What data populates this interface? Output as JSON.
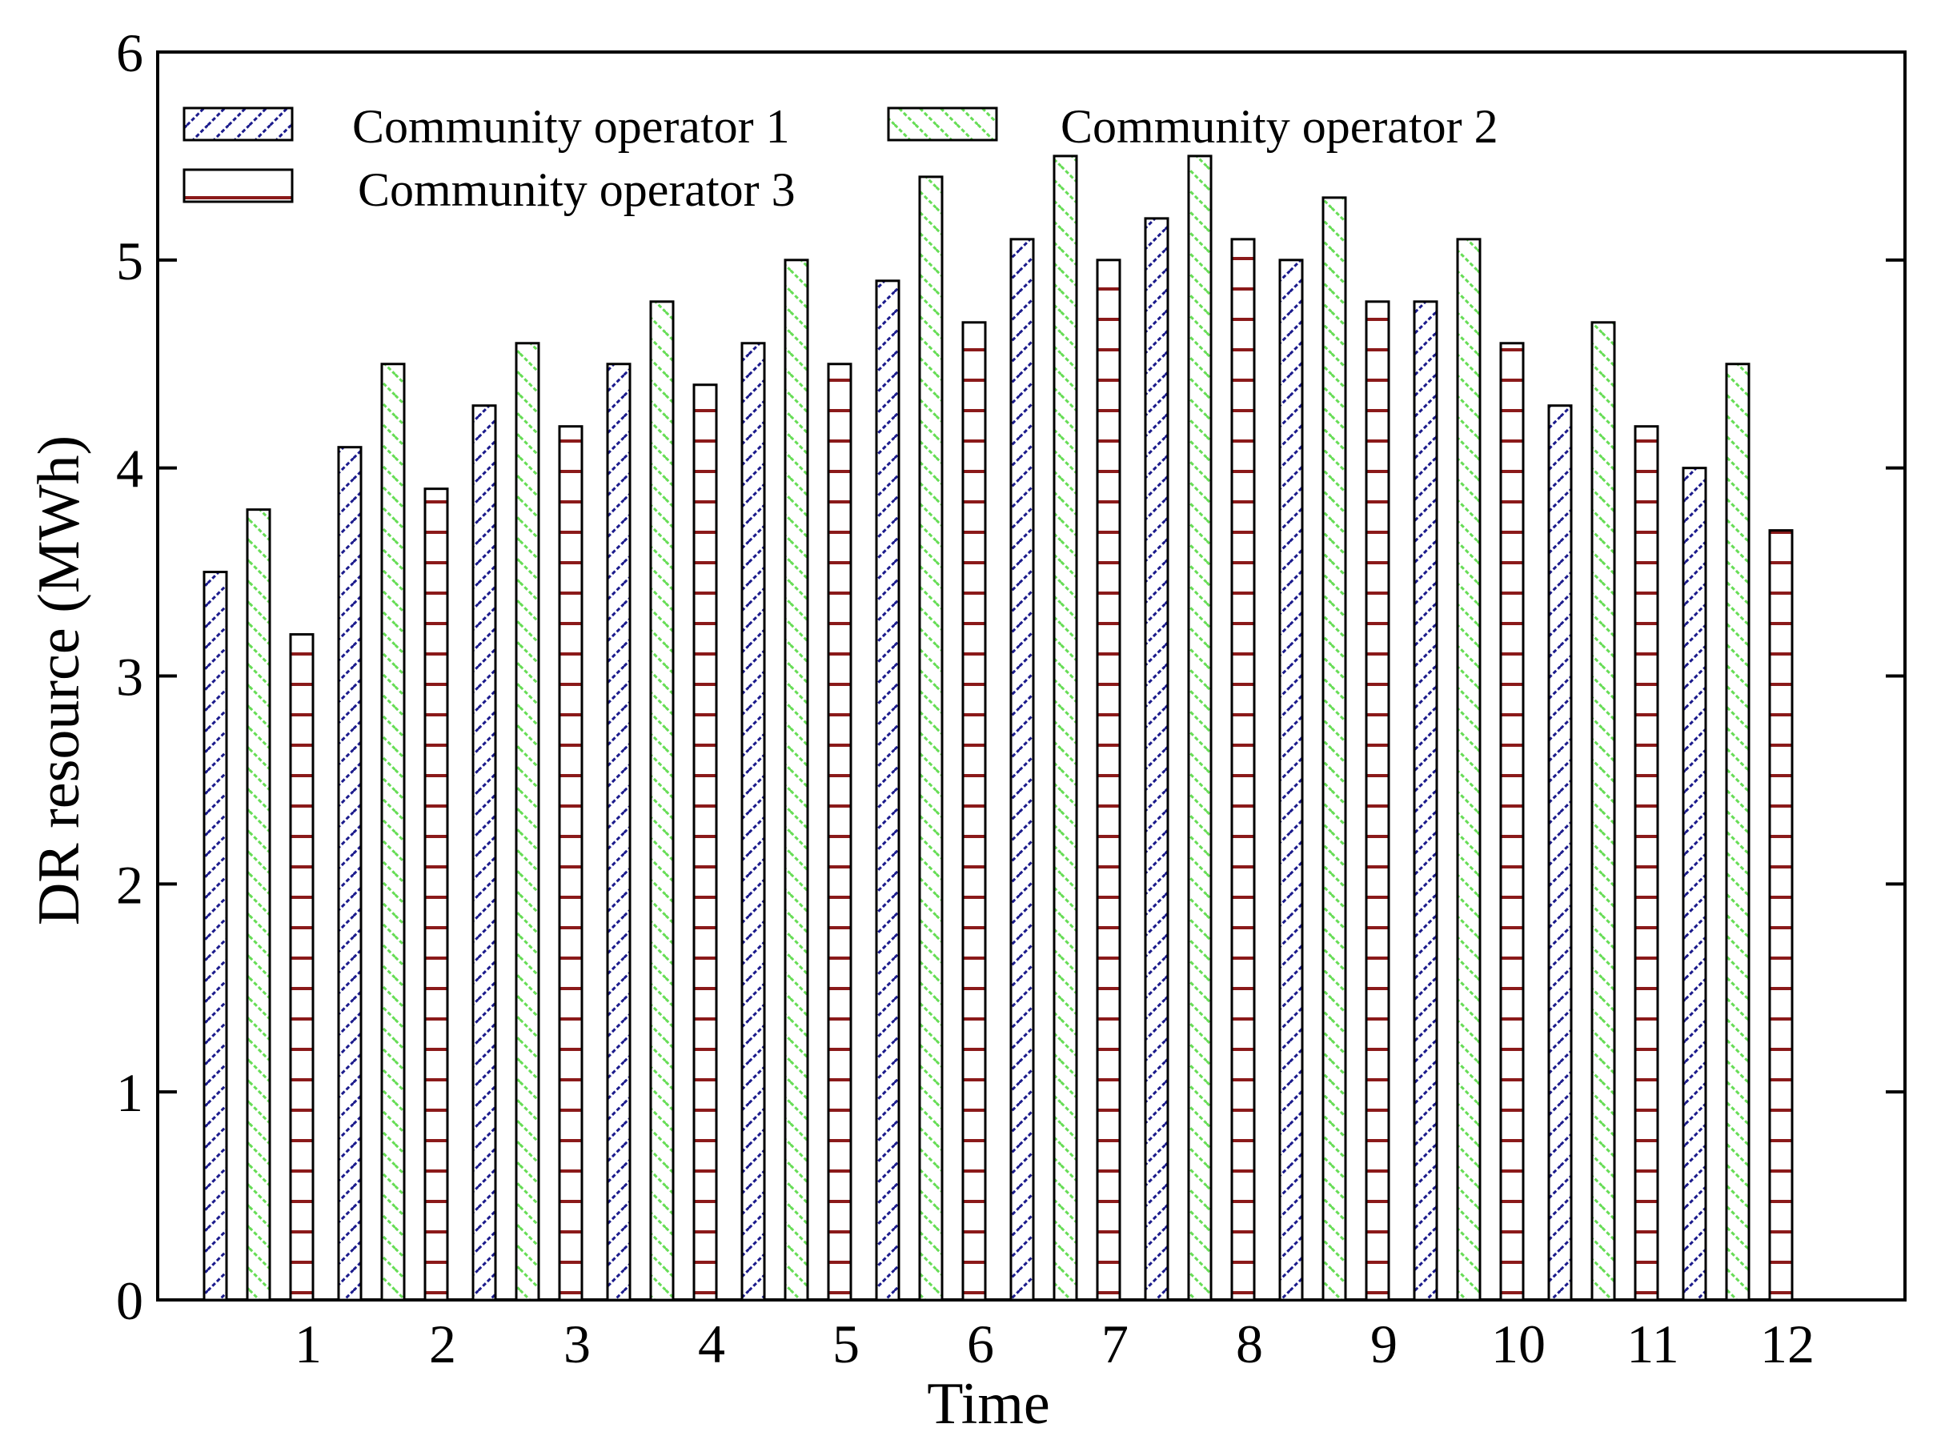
{
  "chart_data": {
    "type": "bar",
    "title": "",
    "xlabel": "Time",
    "ylabel": "DR resource (MWh)",
    "categories": [
      "1",
      "2",
      "3",
      "4",
      "5",
      "6",
      "7",
      "8",
      "9",
      "10",
      "11",
      "12"
    ],
    "ylim": [
      0,
      6
    ],
    "yticks": [
      "0",
      "1",
      "2",
      "3",
      "4",
      "5",
      "6"
    ],
    "grid": false,
    "legend_position": "top-left",
    "series": [
      {
        "name": "Community operator 1",
        "pattern": "diagonal-hatch",
        "color": "#1a1a8c",
        "values": [
          3.5,
          4.1,
          4.3,
          4.5,
          4.6,
          4.9,
          5.1,
          5.2,
          5.0,
          4.8,
          4.3,
          4.0
        ]
      },
      {
        "name": "Community operator 2",
        "pattern": "diagonal-hatch",
        "color": "#66dd55",
        "values": [
          3.8,
          4.5,
          4.6,
          4.8,
          5.0,
          5.4,
          5.5,
          5.5,
          5.3,
          5.1,
          4.7,
          4.5
        ]
      },
      {
        "name": "Community operator 3",
        "pattern": "horizontal-lines",
        "color": "#8b1a1a",
        "values": [
          3.2,
          3.9,
          4.2,
          4.4,
          4.5,
          4.7,
          5.0,
          5.1,
          4.8,
          4.6,
          4.2,
          3.7
        ]
      }
    ]
  }
}
